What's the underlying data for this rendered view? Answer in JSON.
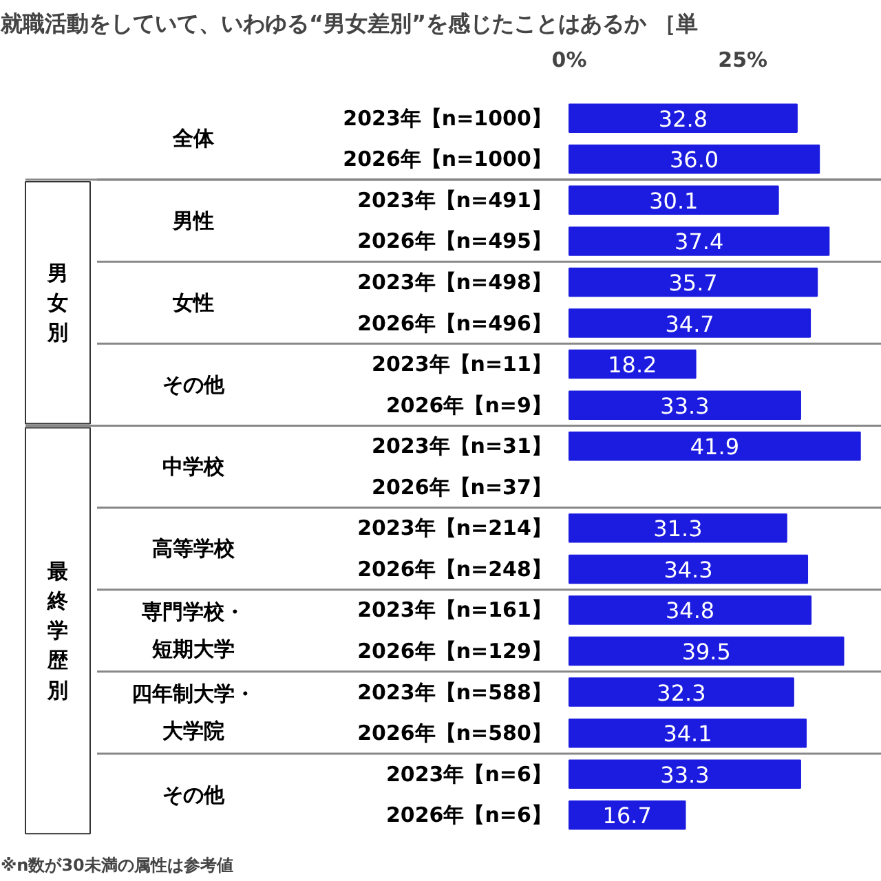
{
  "chart_data": {
    "type": "bar",
    "orientation": "horizontal",
    "title": "就職活動をしていて、いわゆる“男女差別”を感じたことはあるか ［単",
    "categories": [
      "2023年【n=1000】",
      "2026年【n=1000】",
      "2023年【n=491】",
      "2026年【n=495】",
      "2023年【n=498】",
      "2026年【n=496】",
      "2023年【n=11】",
      "2026年【n=9】",
      "2023年【n=31】",
      "2026年【n=37】",
      "2023年【n=214】",
      "2026年【n=248】",
      "2023年【n=161】",
      "2026年【n=129】",
      "2023年【n=588】",
      "2026年【n=580】",
      "2023年【n=6】",
      "2026年【n=6】"
    ],
    "series": [
      {
        "color": "#1c1ce0",
        "values": [
          32.8,
          36.0,
          30.1,
          37.4,
          35.7,
          34.7,
          18.2,
          33.3,
          41.9,
          null,
          31.3,
          34.3,
          34.8,
          39.5,
          32.3,
          34.1,
          33.3,
          16.7
        ]
      }
    ],
    "xlim": [
      0,
      45
    ],
    "xticks": [
      {
        "value": 0,
        "label": "0%"
      },
      {
        "value": 25,
        "label": "25%"
      }
    ],
    "value_labels": [
      "32.8",
      "36.0",
      "30.1",
      "37.4",
      "35.7",
      "34.7",
      "18.2",
      "33.3",
      "41.9",
      null,
      "31.3",
      "34.3",
      "34.8",
      "39.5",
      "32.3",
      "34.1",
      "33.3",
      "16.7"
    ],
    "annotations": [
      "全体",
      "男性",
      "女性",
      "その他",
      "中学校",
      "高等学校",
      "専門学校・短期大学",
      "四年制大学・大学院",
      "その他",
      "男女別",
      "最終学歴別",
      "※n数が30未満の属性は参考値"
    ]
  }
}
